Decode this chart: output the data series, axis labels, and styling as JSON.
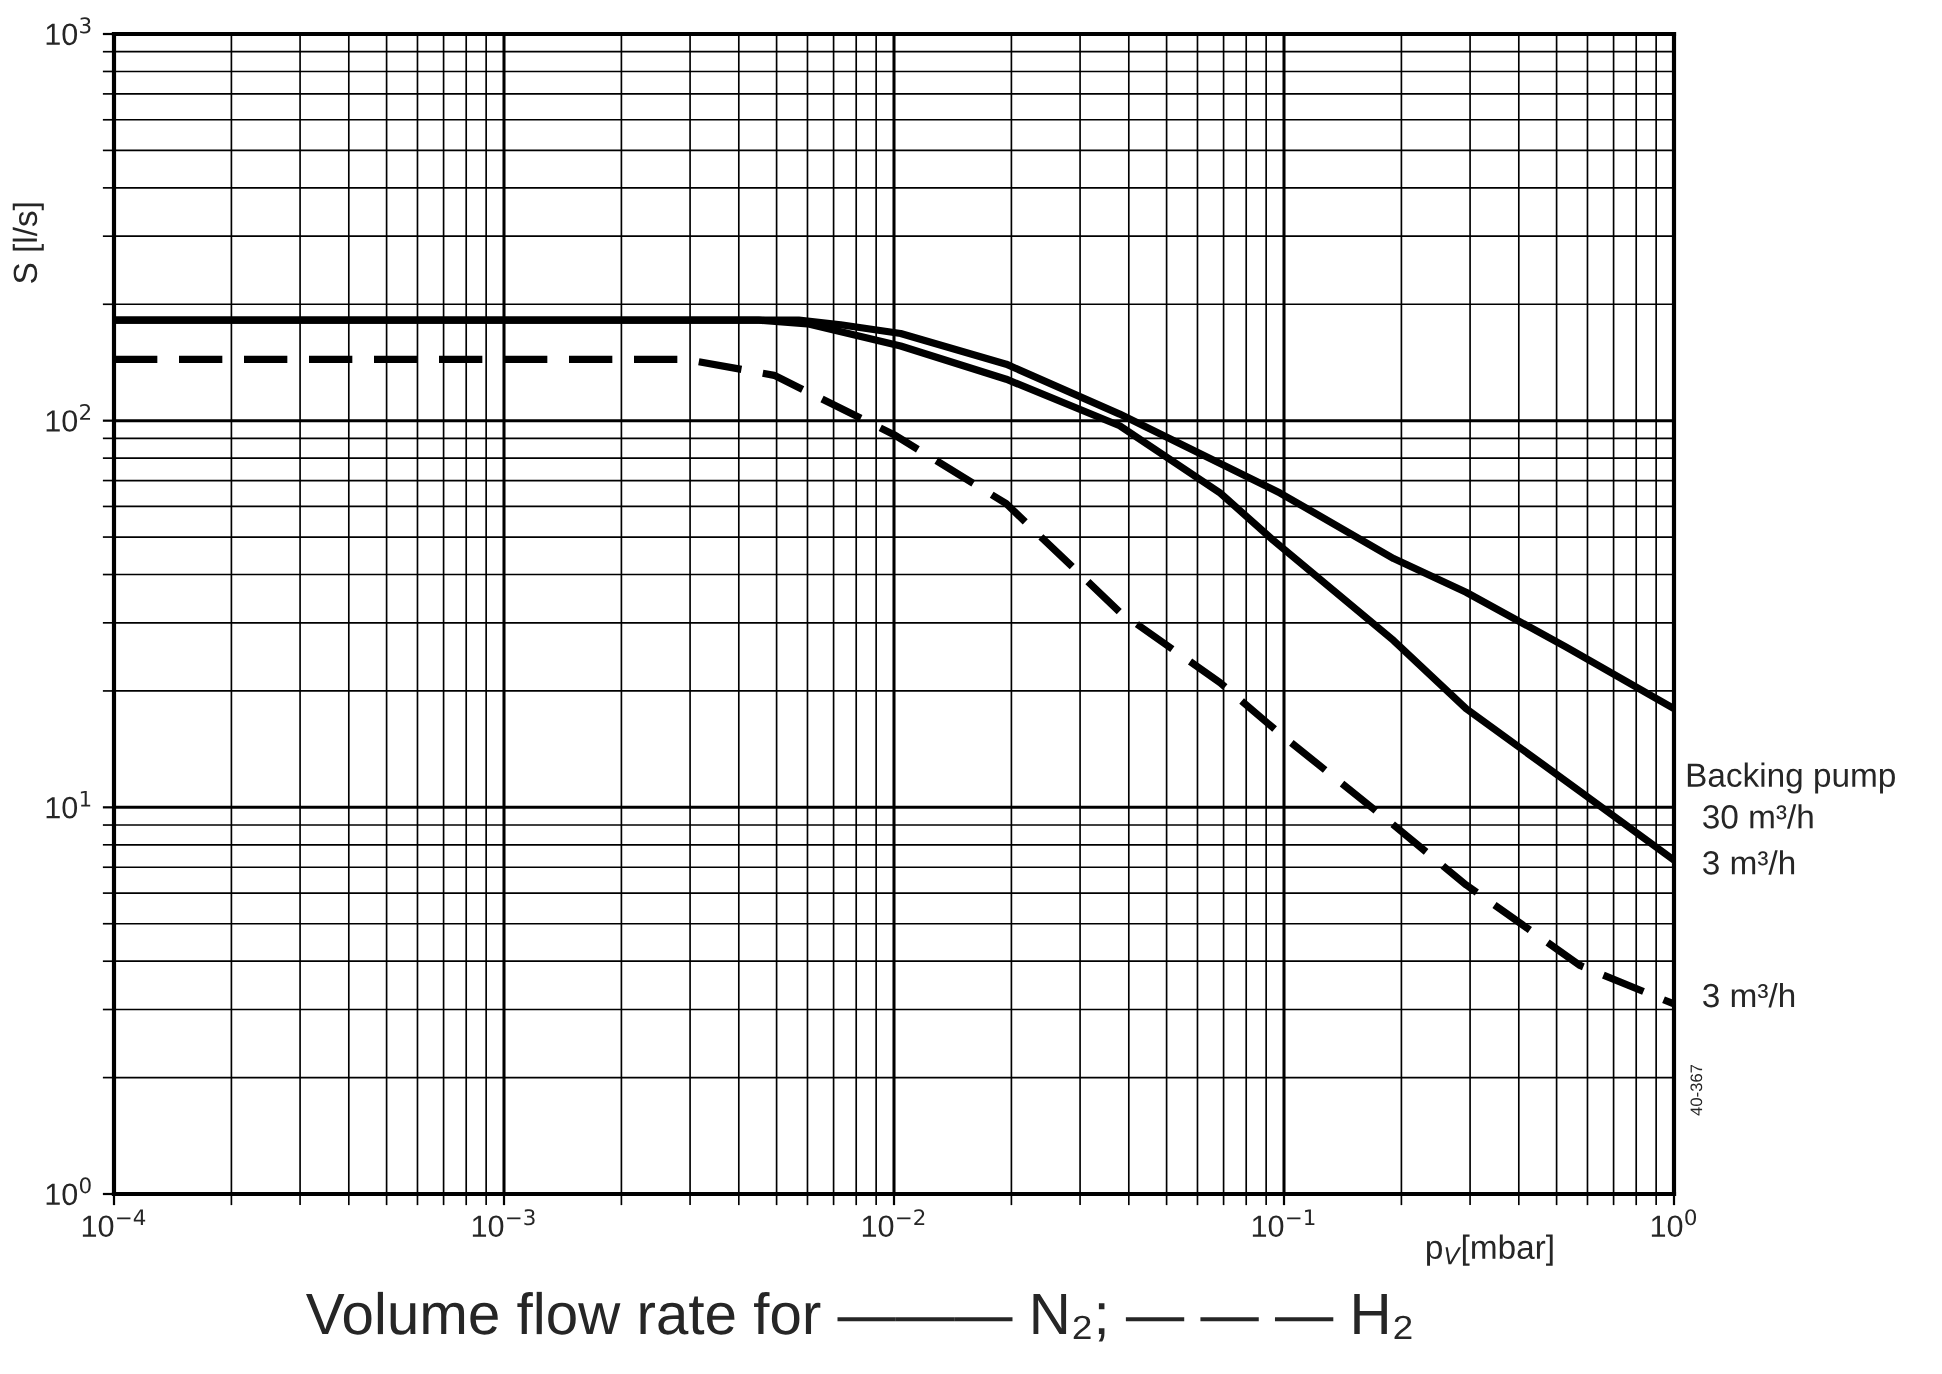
{
  "chart_data": {
    "type": "line",
    "xlabel": "p$_{V}$[mbar]",
    "ylabel": "S [l/s]",
    "log": "xy",
    "grid": true,
    "legend": false,
    "marker": "none",
    "xlim": [
      0.0001,
      1
    ],
    "ylim": [
      1,
      1000
    ],
    "xticks": [
      {
        "value": 0.0001,
        "label": "10$^{−4}$"
      },
      {
        "value": 0.001,
        "label": "10$^{−3}$"
      },
      {
        "value": 0.01,
        "label": "10$^{−2}$"
      },
      {
        "value": 0.1,
        "label": "10$^{−1}$"
      },
      {
        "value": 1,
        "label": "10$^{0}$"
      }
    ],
    "yticks": [
      {
        "value": 1,
        "label": "10$^{0}$"
      },
      {
        "value": 10,
        "label": "10$^{1}$"
      },
      {
        "value": 100,
        "label": "10$^{2}$"
      },
      {
        "value": 1000,
        "label": "10$^{3}$"
      }
    ],
    "series": [
      {
        "name": "30 m³/h",
        "color": "#000000",
        "line_style": "solid",
        "x": [
          0.0001,
          0.0057,
          0.0073,
          0.0104,
          0.0194,
          0.0379,
          0.0977,
          0.191,
          0.293,
          0.528,
          1.0
        ],
        "values": [
          182,
          182,
          177,
          168,
          140,
          104,
          65,
          44,
          36,
          26,
          18
        ]
      },
      {
        "name": "3 m³/h",
        "color": "#000000",
        "line_style": "solid",
        "x": [
          0.0001,
          0.0045,
          0.006,
          0.0104,
          0.0194,
          0.0379,
          0.0686,
          0.094,
          0.191,
          0.293,
          0.574,
          1.0
        ],
        "values": [
          182,
          182,
          178,
          156,
          128,
          97,
          65,
          49,
          27,
          18,
          11,
          7.3
        ]
      },
      {
        "name": "3 m³/h",
        "color": "#000000",
        "line_style": "dashed",
        "x": [
          0.0001,
          0.00293,
          0.00493,
          0.01,
          0.0194,
          0.0379,
          0.0686,
          0.0977,
          0.191,
          0.293,
          0.574,
          1.0
        ],
        "values": [
          144,
          144,
          131,
          92,
          61,
          32,
          21,
          15.5,
          9,
          6.3,
          3.9,
          3.1
        ]
      }
    ],
    "annotations": [
      "Backing pump",
      "Volume flow rate for ——— N₂; — — — H₂",
      "40-367"
    ]
  }
}
